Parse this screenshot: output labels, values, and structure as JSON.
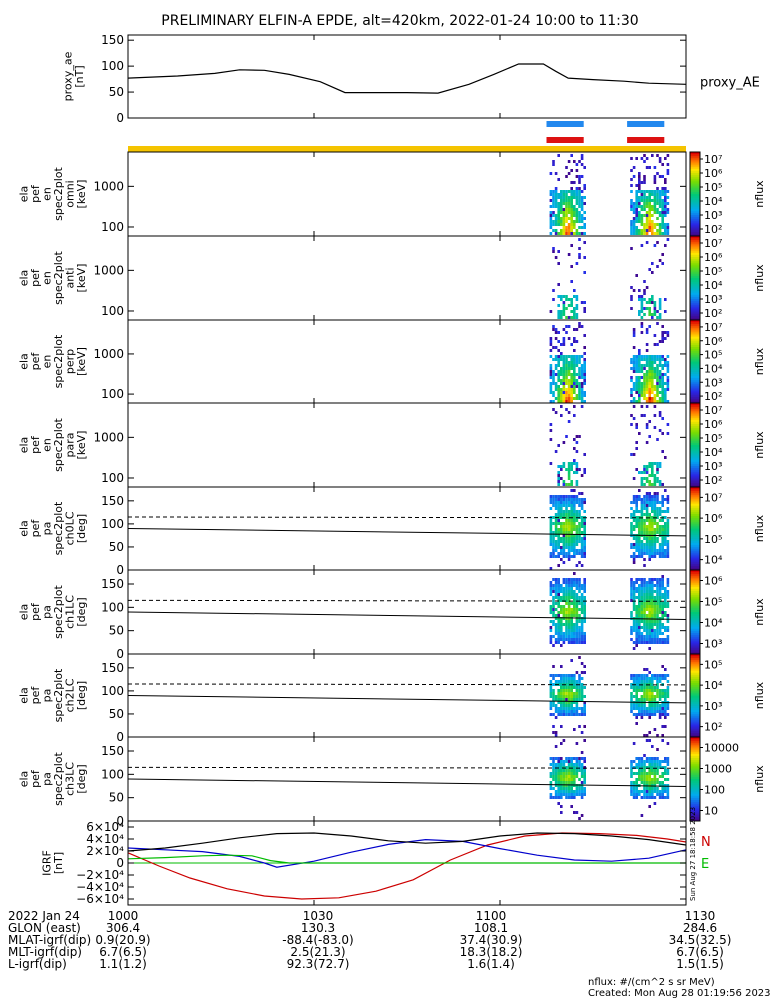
{
  "title": "PRELIMINARY ELFIN-A EPDE, alt=420km, 2022-01-24 10:00 to 11:30",
  "chart_data": {
    "type": "spectrogram",
    "x_range": [
      "10:00",
      "11:30"
    ],
    "x_tick_labels": [
      "1000",
      "1030",
      "1100",
      "1130"
    ],
    "x_ticks_minutes": [
      0,
      30,
      60,
      90
    ],
    "panels": [
      {
        "kind": "line",
        "ylabel": [
          "proxy_ae",
          "[nT]"
        ],
        "legend": "proxy_AE",
        "yrange": [
          0,
          160
        ],
        "yticks": [
          0,
          50,
          100,
          150
        ],
        "series": [
          {
            "name": "proxy_AE",
            "color": "#000000",
            "x": [
              0,
              8,
              14,
              18,
              22,
              26,
              31,
              35,
              40,
              45,
              50,
              55,
              59,
              63,
              67,
              69,
              71,
              75,
              80,
              84,
              90
            ],
            "y": [
              77,
              81,
              86,
              93,
              92,
              84,
              70,
              49,
              49,
              49,
              48,
              65,
              84,
              104,
              104,
              90,
              77,
              74,
              71,
              67,
              65
            ]
          }
        ]
      },
      {
        "kind": "spec",
        "ylabel": [
          "ela",
          "pef",
          "en",
          "spec2plot",
          "omni",
          "[keV]"
        ],
        "yscale": "log",
        "yrange": [
          60,
          7000
        ],
        "yticks": [
          100,
          1000
        ],
        "ytick_labels": [
          "100",
          "1000"
        ],
        "cbar": {
          "label": "nflux",
          "ticks": [
            "10²",
            "10³",
            "10⁴",
            "10⁵",
            "10⁶",
            "10⁷"
          ]
        }
      },
      {
        "kind": "spec",
        "ylabel": [
          "ela",
          "pef",
          "en",
          "spec2plot",
          "anti",
          "[keV]"
        ],
        "yscale": "log",
        "yrange": [
          60,
          7000
        ],
        "yticks": [
          100,
          1000
        ],
        "ytick_labels": [
          "100",
          "1000"
        ],
        "cbar": {
          "label": "nflux",
          "ticks": [
            "10²",
            "10³",
            "10⁴",
            "10⁵",
            "10⁶",
            "10⁷"
          ]
        }
      },
      {
        "kind": "spec",
        "ylabel": [
          "ela",
          "pef",
          "en",
          "spec2plot",
          "perp",
          "[keV]"
        ],
        "yscale": "log",
        "yrange": [
          60,
          7000
        ],
        "yticks": [
          100,
          1000
        ],
        "ytick_labels": [
          "100",
          "1000"
        ],
        "cbar": {
          "label": "nflux",
          "ticks": [
            "10²",
            "10³",
            "10⁴",
            "10⁵",
            "10⁶",
            "10⁷"
          ]
        }
      },
      {
        "kind": "spec",
        "ylabel": [
          "ela",
          "pef",
          "en",
          "spec2plot",
          "para",
          "[keV]"
        ],
        "yscale": "log",
        "yrange": [
          60,
          7000
        ],
        "yticks": [
          100,
          1000
        ],
        "ytick_labels": [
          "100",
          "1000"
        ],
        "cbar": {
          "label": "nflux",
          "ticks": [
            "10²",
            "10³",
            "10⁴",
            "10⁵",
            "10⁶",
            "10⁷"
          ]
        }
      },
      {
        "kind": "pa",
        "ylabel": [
          "ela",
          "pef",
          "pa",
          "spec2plot",
          "ch0LC",
          "[deg]"
        ],
        "yrange": [
          0,
          180
        ],
        "yticks": [
          0,
          50,
          100,
          150
        ],
        "cbar": {
          "label": "nflux",
          "ticks": [
            "10⁴",
            "10⁵",
            "10⁶",
            "10⁷"
          ]
        }
      },
      {
        "kind": "pa",
        "ylabel": [
          "ela",
          "pef",
          "pa",
          "spec2plot",
          "ch1LC",
          "[deg]"
        ],
        "yrange": [
          0,
          180
        ],
        "yticks": [
          0,
          50,
          100,
          150
        ],
        "cbar": {
          "label": "nflux",
          "ticks": [
            "10³",
            "10⁴",
            "10⁵",
            "10⁶"
          ]
        }
      },
      {
        "kind": "pa",
        "ylabel": [
          "ela",
          "pef",
          "pa",
          "spec2plot",
          "ch2LC",
          "[deg]"
        ],
        "yrange": [
          0,
          180
        ],
        "yticks": [
          0,
          50,
          100,
          150
        ],
        "cbar": {
          "label": "nflux",
          "ticks": [
            "10²",
            "10³",
            "10⁴",
            "10⁵"
          ]
        }
      },
      {
        "kind": "pa",
        "ylabel": [
          "ela",
          "pef",
          "pa",
          "spec2plot",
          "ch3LC",
          "[deg]"
        ],
        "yrange": [
          0,
          180
        ],
        "yticks": [
          0,
          50,
          100,
          150
        ],
        "cbar": {
          "label": "nflux",
          "ticks": [
            "10",
            "100",
            "1000",
            "10000"
          ]
        }
      },
      {
        "kind": "line",
        "ylabel": [
          "IGRF",
          "[nT]"
        ],
        "yrange": [
          -70000,
          70000
        ],
        "yticks": [
          -60000,
          -40000,
          -20000,
          0,
          20000,
          40000,
          60000
        ],
        "ytick_labels": [
          "−6×10⁴",
          "−4×10⁴",
          "−2×10⁴",
          "0",
          "2×10⁴",
          "4×10⁴",
          "6×10⁴"
        ],
        "legend": [
          "N",
          "E"
        ],
        "stamp": "Sun Aug 27 18:18:58 2023",
        "series": [
          {
            "name": "N",
            "color": "#cc0000",
            "x": [
              0,
              5,
              10,
              16,
              22,
              28,
              34,
              40,
              46,
              52,
              58,
              64,
              70,
              76,
              82,
              87,
              90
            ],
            "y": [
              17000,
              -5000,
              -25000,
              -43000,
              -55000,
              -60000,
              -58000,
              -47000,
              -28000,
              5000,
              30000,
              45000,
              50000,
              49000,
              46000,
              40000,
              35000
            ]
          },
          {
            "name": "",
            "color": "#0000cc",
            "x": [
              0,
              6,
              12,
              18,
              22,
              24,
              30,
              36,
              42,
              48,
              54,
              60,
              66,
              72,
              78,
              84,
              90
            ],
            "y": [
              25000,
              22000,
              19000,
              11000,
              0,
              -7000,
              3000,
              18000,
              31000,
              39000,
              36000,
              24000,
              13000,
              5000,
              3000,
              8000,
              22000
            ]
          },
          {
            "name": "E",
            "color": "#00bb00",
            "x": [
              0,
              6,
              12,
              16,
              20,
              23,
              26,
              30,
              40,
              60,
              90
            ],
            "y": [
              7000,
              9000,
              12000,
              13000,
              12000,
              4000,
              0,
              0,
              0,
              0,
              0
            ]
          },
          {
            "name": "",
            "color": "#000000",
            "x": [
              0,
              6,
              12,
              18,
              24,
              30,
              36,
              42,
              48,
              54,
              60,
              66,
              72,
              78,
              84,
              90
            ],
            "y": [
              20000,
              25000,
              33000,
              42000,
              49000,
              50000,
              45000,
              37000,
              33000,
              36000,
              45000,
              50000,
              49000,
              45000,
              39000,
              30000
            ]
          }
        ]
      }
    ]
  },
  "footer": {
    "rows": [
      {
        "label": "2022 Jan 24",
        "values": [
          "1000",
          "1030",
          "1100",
          "1130"
        ]
      },
      {
        "label": "GLON (east)",
        "values": [
          "306.4",
          "130.3",
          "108.1",
          "284.6"
        ]
      },
      {
        "label": "MLAT-igrf(dip)",
        "values": [
          "0.9(20.9)",
          "-88.4(-83.0)",
          "37.4(30.9)",
          "34.5(32.5)"
        ]
      },
      {
        "label": "MLT-igrf(dip)",
        "values": [
          "6.7(6.5)",
          "2.5(21.3)",
          "18.3(18.2)",
          "6.7(6.5)"
        ]
      },
      {
        "label": "L-igrf(dip)",
        "values": [
          "1.1(1.2)",
          "92.3(72.7)",
          "1.6(1.4)",
          "1.5(1.5)"
        ]
      }
    ],
    "units_note": "nflux: #/(cm^2 s sr MeV)",
    "created": "Created: Mon Aug 28 01:19:56 2023"
  }
}
